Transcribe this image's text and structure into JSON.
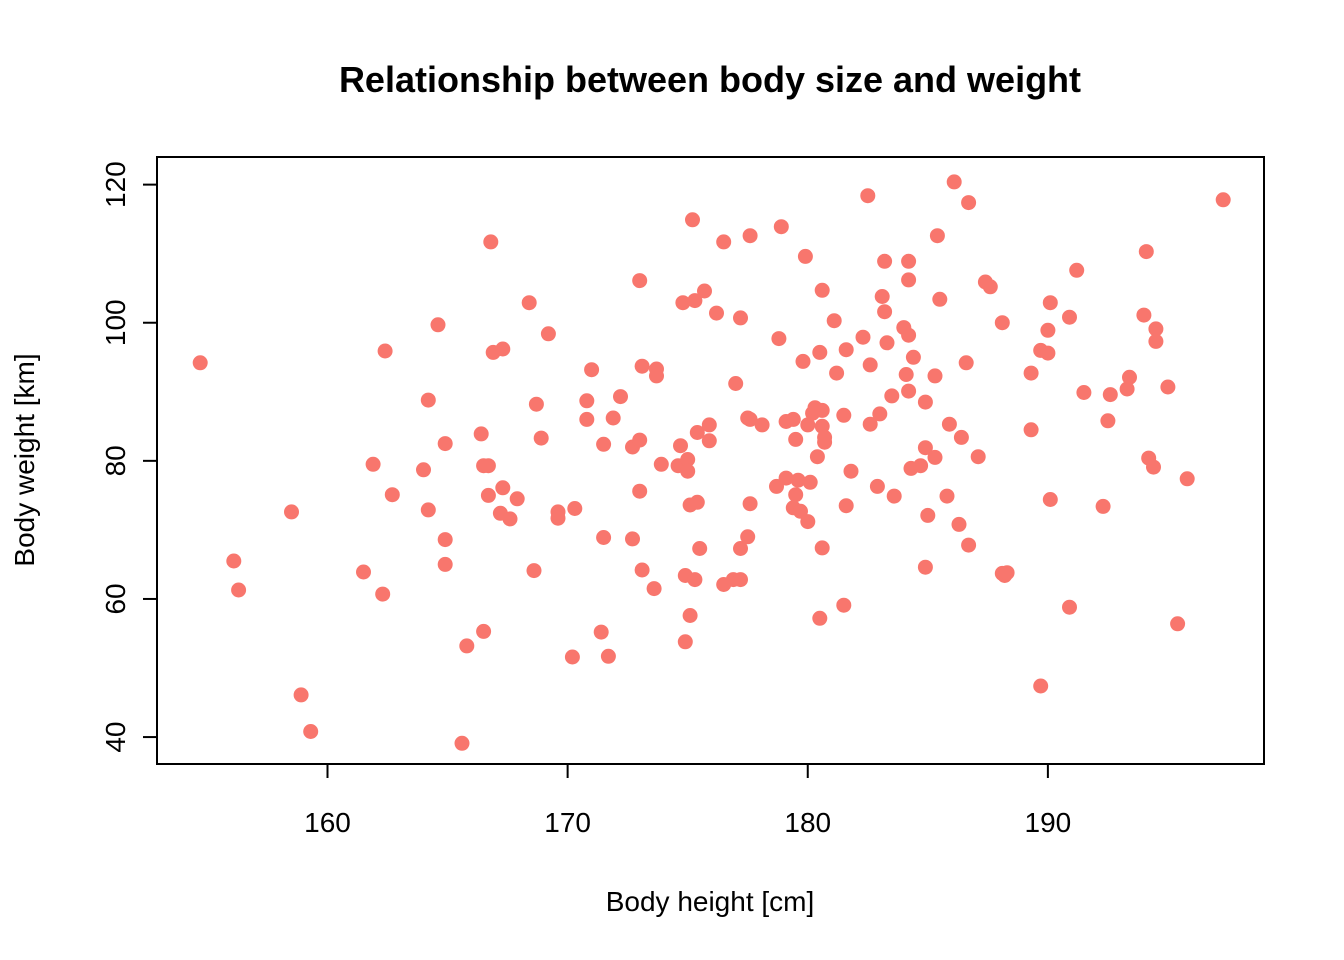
{
  "colors": {
    "point": "#F8766D",
    "axis": "#000000",
    "background": "#FFFFFF"
  },
  "chart_data": {
    "type": "scatter",
    "title": "Relationship between body size and weight",
    "xlabel": "Body height [cm]",
    "ylabel": "Body weight [km]",
    "xlim": [
      152.9,
      199.0
    ],
    "ylim": [
      36.1,
      124.0
    ],
    "xticks": [
      160,
      170,
      180,
      190
    ],
    "yticks": [
      40,
      60,
      80,
      100,
      120
    ],
    "grid": false,
    "legend": "none",
    "points": [
      [
        154.7,
        94.2
      ],
      [
        156.1,
        65.5
      ],
      [
        156.3,
        61.3
      ],
      [
        158.5,
        72.6
      ],
      [
        158.9,
        46.1
      ],
      [
        159.3,
        40.8
      ],
      [
        161.5,
        63.9
      ],
      [
        161.9,
        79.5
      ],
      [
        162.3,
        60.7
      ],
      [
        162.4,
        95.9
      ],
      [
        162.7,
        75.1
      ],
      [
        164.0,
        78.7
      ],
      [
        164.2,
        72.9
      ],
      [
        164.2,
        88.8
      ],
      [
        164.6,
        99.7
      ],
      [
        164.9,
        82.5
      ],
      [
        164.9,
        68.6
      ],
      [
        164.9,
        65.0
      ],
      [
        165.6,
        39.1
      ],
      [
        165.8,
        53.2
      ],
      [
        166.4,
        83.9
      ],
      [
        166.5,
        79.3
      ],
      [
        166.5,
        55.3
      ],
      [
        166.7,
        75.0
      ],
      [
        166.7,
        79.3
      ],
      [
        166.8,
        111.7
      ],
      [
        166.9,
        95.7
      ],
      [
        167.2,
        72.4
      ],
      [
        167.3,
        76.1
      ],
      [
        167.3,
        96.2
      ],
      [
        167.6,
        71.6
      ],
      [
        167.9,
        74.5
      ],
      [
        168.4,
        102.9
      ],
      [
        168.6,
        64.1
      ],
      [
        168.7,
        88.2
      ],
      [
        168.9,
        83.3
      ],
      [
        169.2,
        98.4
      ],
      [
        169.6,
        72.6
      ],
      [
        169.6,
        71.7
      ],
      [
        170.2,
        51.6
      ],
      [
        170.3,
        73.1
      ],
      [
        170.8,
        88.7
      ],
      [
        170.8,
        86.0
      ],
      [
        171.0,
        93.2
      ],
      [
        171.5,
        82.4
      ],
      [
        171.4,
        55.2
      ],
      [
        171.5,
        68.9
      ],
      [
        171.7,
        51.7
      ],
      [
        171.9,
        86.2
      ],
      [
        172.2,
        89.3
      ],
      [
        172.7,
        82.0
      ],
      [
        172.7,
        68.7
      ],
      [
        173.0,
        83.0
      ],
      [
        173.0,
        106.1
      ],
      [
        173.0,
        75.6
      ],
      [
        173.1,
        64.2
      ],
      [
        173.1,
        93.7
      ],
      [
        173.6,
        61.5
      ],
      [
        173.7,
        93.3
      ],
      [
        173.7,
        92.3
      ],
      [
        173.9,
        79.5
      ],
      [
        174.6,
        79.3
      ],
      [
        174.7,
        82.2
      ],
      [
        174.8,
        102.9
      ],
      [
        174.9,
        53.8
      ],
      [
        174.9,
        63.4
      ],
      [
        175.0,
        80.2
      ],
      [
        175.0,
        78.5
      ],
      [
        175.1,
        57.6
      ],
      [
        175.1,
        73.6
      ],
      [
        175.2,
        114.9
      ],
      [
        175.3,
        62.8
      ],
      [
        175.3,
        103.2
      ],
      [
        175.4,
        84.1
      ],
      [
        175.4,
        74.0
      ],
      [
        175.5,
        67.3
      ],
      [
        175.7,
        104.6
      ],
      [
        175.9,
        85.2
      ],
      [
        175.9,
        82.9
      ],
      [
        176.2,
        101.4
      ],
      [
        176.5,
        62.1
      ],
      [
        176.5,
        111.7
      ],
      [
        176.9,
        62.8
      ],
      [
        177.0,
        91.2
      ],
      [
        177.2,
        100.7
      ],
      [
        177.2,
        62.8
      ],
      [
        177.2,
        67.3
      ],
      [
        177.5,
        69.0
      ],
      [
        177.5,
        86.2
      ],
      [
        177.6,
        112.6
      ],
      [
        177.6,
        73.8
      ],
      [
        177.6,
        86.0
      ],
      [
        178.1,
        85.2
      ],
      [
        178.7,
        76.3
      ],
      [
        178.8,
        97.7
      ],
      [
        178.9,
        113.9
      ],
      [
        179.1,
        85.7
      ],
      [
        179.1,
        77.5
      ],
      [
        179.4,
        86.0
      ],
      [
        179.4,
        73.2
      ],
      [
        179.5,
        83.1
      ],
      [
        179.5,
        75.1
      ],
      [
        179.6,
        77.2
      ],
      [
        179.7,
        72.7
      ],
      [
        179.8,
        94.4
      ],
      [
        179.9,
        109.6
      ],
      [
        180.0,
        71.2
      ],
      [
        180.0,
        85.2
      ],
      [
        180.1,
        76.9
      ],
      [
        180.2,
        86.9
      ],
      [
        180.3,
        87.7
      ],
      [
        180.4,
        80.6
      ],
      [
        180.5,
        95.7
      ],
      [
        180.5,
        57.2
      ],
      [
        180.6,
        104.7
      ],
      [
        180.6,
        87.3
      ],
      [
        180.6,
        85.0
      ],
      [
        180.7,
        82.7
      ],
      [
        180.7,
        83.4
      ],
      [
        180.6,
        67.4
      ],
      [
        181.1,
        100.3
      ],
      [
        181.2,
        92.7
      ],
      [
        181.5,
        86.6
      ],
      [
        181.5,
        59.1
      ],
      [
        181.6,
        96.1
      ],
      [
        181.6,
        73.5
      ],
      [
        181.8,
        78.5
      ],
      [
        182.3,
        97.9
      ],
      [
        182.5,
        118.4
      ],
      [
        182.6,
        85.3
      ],
      [
        182.6,
        93.9
      ],
      [
        182.9,
        76.3
      ],
      [
        183.0,
        86.8
      ],
      [
        183.1,
        103.8
      ],
      [
        183.2,
        101.6
      ],
      [
        183.2,
        108.9
      ],
      [
        183.3,
        97.1
      ],
      [
        183.5,
        89.4
      ],
      [
        183.6,
        74.9
      ],
      [
        184.0,
        99.3
      ],
      [
        184.1,
        92.5
      ],
      [
        184.2,
        98.2
      ],
      [
        184.2,
        90.1
      ],
      [
        184.2,
        106.2
      ],
      [
        184.2,
        108.9
      ],
      [
        184.3,
        78.9
      ],
      [
        184.4,
        95.0
      ],
      [
        184.7,
        79.3
      ],
      [
        184.9,
        64.6
      ],
      [
        184.9,
        88.5
      ],
      [
        184.9,
        81.9
      ],
      [
        185.0,
        72.1
      ],
      [
        185.3,
        80.5
      ],
      [
        185.3,
        92.3
      ],
      [
        185.4,
        112.6
      ],
      [
        185.5,
        103.4
      ],
      [
        185.8,
        74.9
      ],
      [
        185.9,
        85.3
      ],
      [
        186.1,
        120.4
      ],
      [
        186.3,
        70.8
      ],
      [
        186.4,
        83.4
      ],
      [
        186.6,
        94.2
      ],
      [
        186.7,
        67.8
      ],
      [
        186.7,
        117.4
      ],
      [
        187.1,
        80.6
      ],
      [
        187.4,
        105.9
      ],
      [
        187.6,
        105.2
      ],
      [
        188.1,
        100.0
      ],
      [
        188.1,
        63.7
      ],
      [
        188.2,
        63.4
      ],
      [
        188.3,
        63.8
      ],
      [
        189.3,
        92.7
      ],
      [
        189.3,
        84.5
      ],
      [
        189.7,
        47.4
      ],
      [
        189.7,
        96.0
      ],
      [
        190.0,
        98.9
      ],
      [
        190.0,
        95.6
      ],
      [
        190.1,
        102.9
      ],
      [
        190.1,
        74.4
      ],
      [
        190.9,
        100.8
      ],
      [
        190.9,
        58.8
      ],
      [
        191.2,
        107.6
      ],
      [
        191.5,
        89.9
      ],
      [
        192.3,
        73.4
      ],
      [
        192.5,
        85.8
      ],
      [
        192.6,
        89.6
      ],
      [
        193.3,
        90.4
      ],
      [
        193.4,
        92.1
      ],
      [
        194.0,
        101.1
      ],
      [
        194.1,
        110.3
      ],
      [
        194.2,
        80.4
      ],
      [
        194.4,
        79.1
      ],
      [
        194.5,
        99.1
      ],
      [
        194.5,
        97.3
      ],
      [
        195.0,
        90.7
      ],
      [
        195.4,
        56.4
      ],
      [
        195.8,
        77.4
      ],
      [
        197.3,
        117.8
      ]
    ]
  }
}
